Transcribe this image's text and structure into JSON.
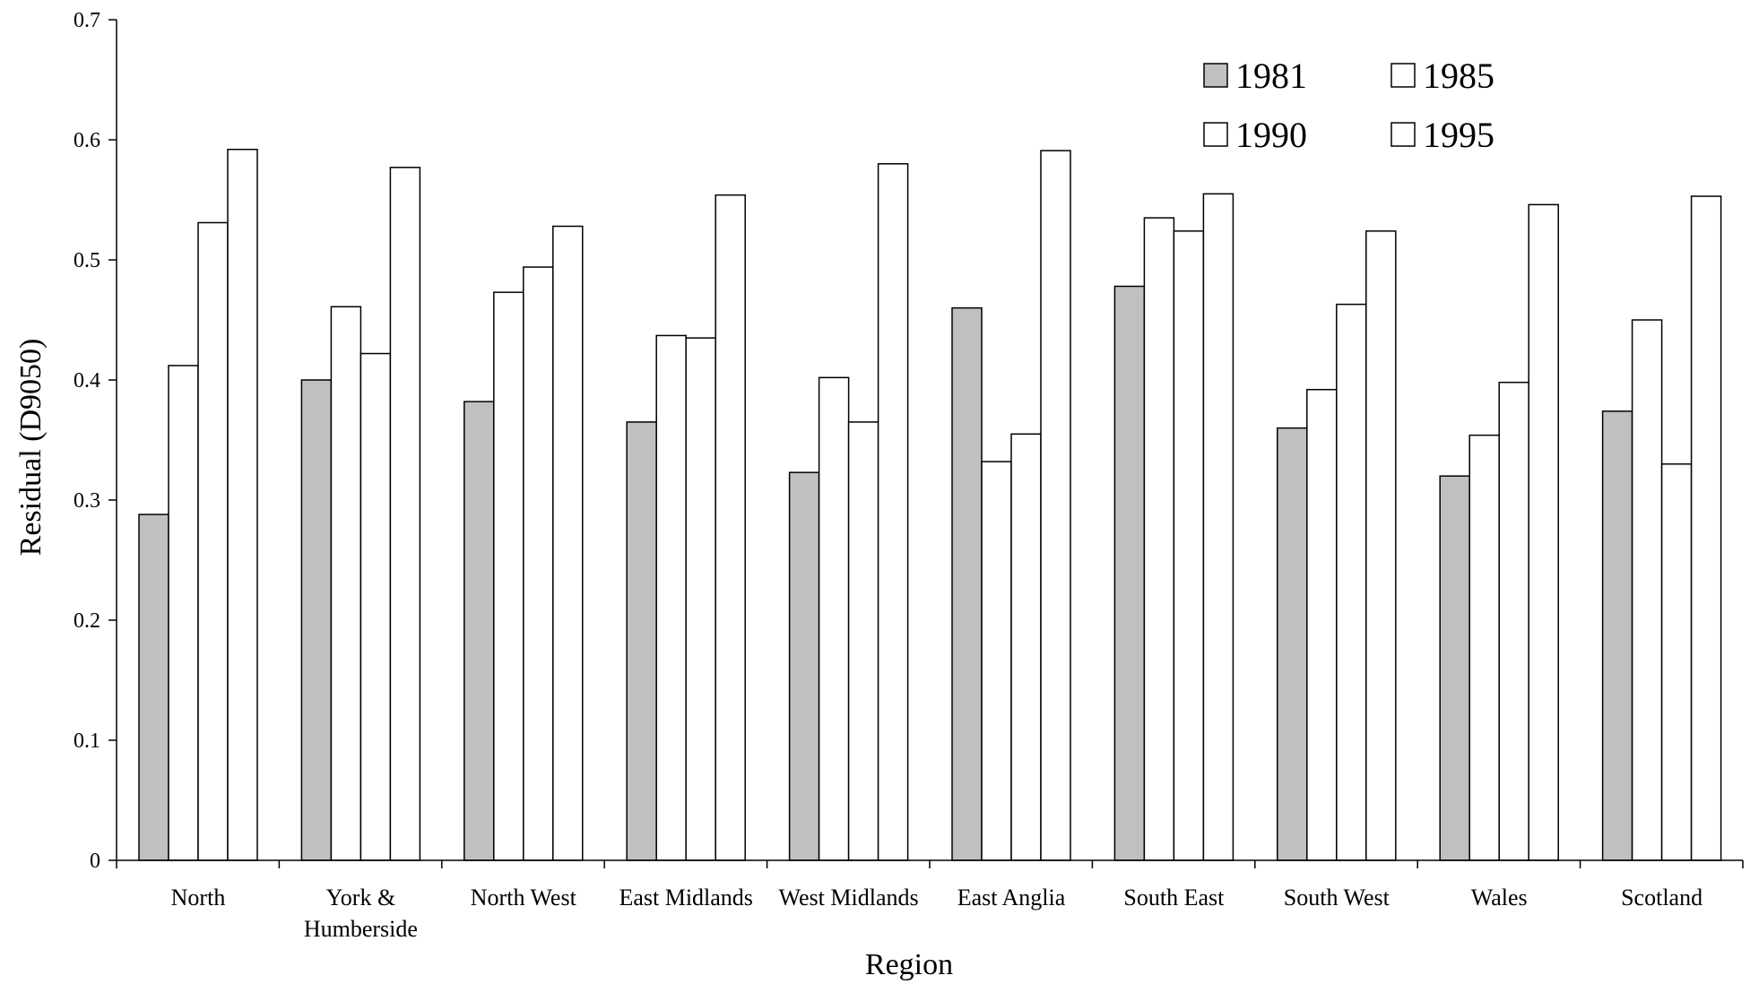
{
  "chart_data": {
    "type": "bar",
    "title": "",
    "xlabel": "Region",
    "ylabel": "Residual (D9050)",
    "ylim": [
      0,
      0.7
    ],
    "yticks": [
      "0",
      "0.1",
      "0.2",
      "0.3",
      "0.4",
      "0.5",
      "0.6",
      "0.7"
    ],
    "grid": false,
    "legend_position": "top-right",
    "categories": [
      [
        "North"
      ],
      [
        "York &",
        "Humberside"
      ],
      [
        "North West"
      ],
      [
        "East Midlands"
      ],
      [
        "West Midlands"
      ],
      [
        "East Anglia"
      ],
      [
        "South East"
      ],
      [
        "South West"
      ],
      [
        "Wales"
      ],
      [
        "Scotland"
      ]
    ],
    "series": [
      {
        "name": "1981",
        "color": "#c0c0c0",
        "values": [
          0.288,
          0.4,
          0.382,
          0.365,
          0.323,
          0.46,
          0.478,
          0.36,
          0.32,
          0.374
        ]
      },
      {
        "name": "1985",
        "color": "#ffffff",
        "values": [
          0.412,
          0.461,
          0.473,
          0.437,
          0.402,
          0.332,
          0.535,
          0.392,
          0.354,
          0.45
        ]
      },
      {
        "name": "1990",
        "color": "#ffffff",
        "values": [
          0.531,
          0.422,
          0.494,
          0.435,
          0.365,
          0.355,
          0.524,
          0.463,
          0.398,
          0.33
        ]
      },
      {
        "name": "1995",
        "color": "#ffffff",
        "values": [
          0.592,
          0.577,
          0.528,
          0.554,
          0.58,
          0.591,
          0.555,
          0.524,
          0.546,
          0.553
        ]
      }
    ]
  }
}
